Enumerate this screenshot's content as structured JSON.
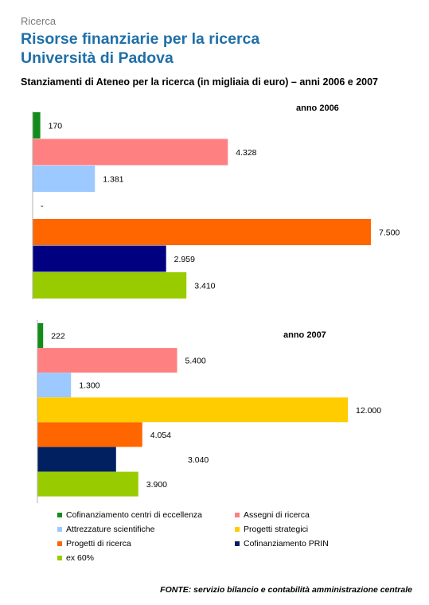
{
  "header": {
    "section": "Ricerca",
    "title_line1": "Risorse finanziarie per la ricerca",
    "title_line2": "Università di Padova",
    "subtitle": "Stanziamenti di Ateneo per la ricerca (in migliaia di euro) – anni 2006 e 2007"
  },
  "colors": {
    "cofinanziamento_centri": "#138c1b",
    "assegni": "#ff8080",
    "attrezzature": "#9cc9ff",
    "progetti_strategici": "#ffcc00",
    "progetti_ricerca": "#ff6600",
    "prin_2006": "#000080",
    "prin_2007": "#002060",
    "ex60": "#99cc00"
  },
  "chart_data": [
    {
      "type": "bar",
      "orientation": "horizontal",
      "title": "anno 2006",
      "categories": [
        "Cofinanziamento centri di eccellenza",
        "Assegni di ricerca",
        "Attrezzature scientifiche",
        "Progetti strategici",
        "Progetti di ricerca",
        "Cofinanziamento PRIN",
        "ex 60%"
      ],
      "values": [
        170,
        4328,
        1381,
        null,
        7500,
        2959,
        3410
      ],
      "data_labels": [
        "170",
        "4.328",
        "1.381",
        "-",
        "7.500",
        "2.959",
        "3.410"
      ],
      "color_keys": [
        "cofinanziamento_centri",
        "assegni",
        "attrezzature",
        "progetti_strategici",
        "progetti_ricerca",
        "prin_2006",
        "ex60"
      ],
      "xlim": [
        0,
        7500
      ]
    },
    {
      "type": "bar",
      "orientation": "horizontal",
      "title": "anno 2007",
      "categories": [
        "Cofinanziamento centri di eccellenza",
        "Assegni di ricerca",
        "Attrezzature scientifiche",
        "Progetti strategici",
        "Progetti di ricerca",
        "Cofinanziamento PRIN",
        "ex 60%"
      ],
      "values": [
        222,
        5400,
        1300,
        12000,
        4054,
        3040,
        3900
      ],
      "data_labels": [
        "222",
        "5.400",
        "1.300",
        "12.000",
        "4.054",
        "3.040",
        "3.900"
      ],
      "color_keys": [
        "cofinanziamento_centri",
        "assegni",
        "attrezzature",
        "progetti_strategici",
        "progetti_ricerca",
        "prin_2007",
        "ex60"
      ],
      "xlim": [
        0,
        12000
      ]
    }
  ],
  "legend": [
    {
      "label": "Cofinanziamento centri di eccellenza",
      "color_key": "cofinanziamento_centri"
    },
    {
      "label": "Assegni di ricerca",
      "color_key": "assegni"
    },
    {
      "label": "Attrezzature scientifiche",
      "color_key": "attrezzature"
    },
    {
      "label": "Progetti strategici",
      "color_key": "progetti_strategici"
    },
    {
      "label": "Progetti di ricerca",
      "color_key": "progetti_ricerca"
    },
    {
      "label": "Cofinanziamento PRIN",
      "color_key": "prin_2007"
    },
    {
      "label": "ex 60%",
      "color_key": "ex60"
    }
  ],
  "footer": {
    "source": "FONTE: servizio bilancio e contabilità amministrazione centrale"
  }
}
